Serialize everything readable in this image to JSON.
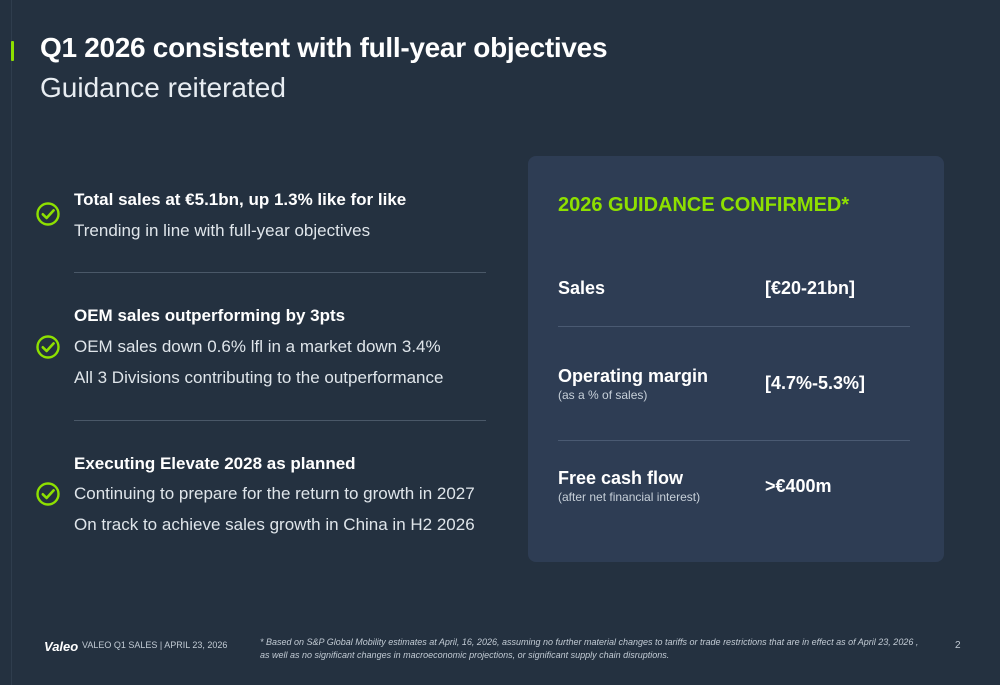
{
  "slide": {
    "title": "Q1 2026 consistent with full-year objectives",
    "subtitle": "Guidance reiterated"
  },
  "highlights": [
    {
      "icon": "check-circle-icon",
      "heading": "Total sales at €5.1bn, up 1.3% like for like",
      "lines": [
        "Trending in line with full-year objectives"
      ]
    },
    {
      "icon": "check-circle-icon",
      "heading": "OEM sales outperforming by 3pts",
      "lines": [
        "OEM sales down 0.6% lfl in a market down 3.4%",
        "All 3 Divisions contributing to the outperformance"
      ]
    },
    {
      "icon": "check-circle-icon",
      "heading": "Executing Elevate 2028 as planned",
      "lines": [
        "Continuing to prepare for the return to growth in 2027",
        "On track to achieve sales growth in China in H2 2026"
      ]
    }
  ],
  "guidance": {
    "title": "2026 GUIDANCE CONFIRMED*",
    "rows": [
      {
        "label": "Sales",
        "sublabel": "",
        "value": "[€20-21bn]"
      },
      {
        "label": "Operating margin",
        "sublabel": "(as a % of sales)",
        "value": "[4.7%-5.3%]"
      },
      {
        "label": "Free cash flow",
        "sublabel": "(after net financial interest)",
        "value": ">€400m"
      }
    ]
  },
  "footer": {
    "logo": "Valeo",
    "meta": "VALEO Q1 SALES | APRIL 23, 2026",
    "footnote": "* Based on S&P Global Mobility estimates at April, 16,  2026, assuming no further material changes to tariffs or trade restrictions that are in effect as of April 23, 2026 , as well as no significant changes in macroeconomic projections, or significant supply chain disruptions.",
    "page_number": "2"
  },
  "colors": {
    "background": "#243140",
    "panel": "#2e3d54",
    "accent": "#8ee000"
  }
}
